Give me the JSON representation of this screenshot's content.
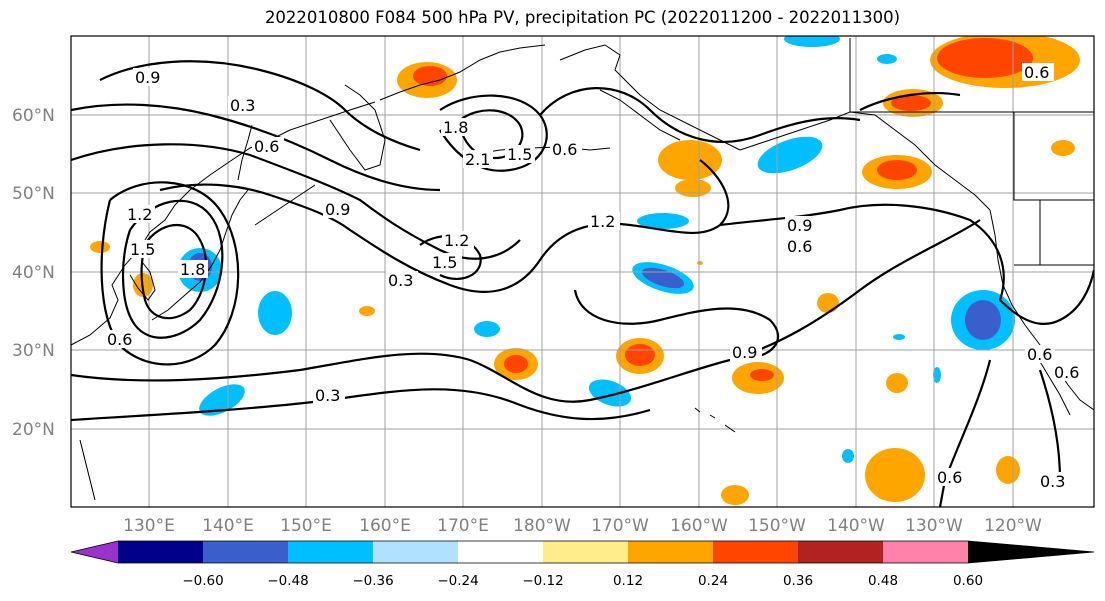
{
  "title": "2022010800 F084 500 hPa PV, precipitation PC (2022011200 - 2022011300)",
  "lat_labels": [
    "60°N",
    "50°N",
    "40°N",
    "30°N",
    "20°N"
  ],
  "lon_labels": [
    "130°E",
    "140°E",
    "150°E",
    "160°E",
    "170°E",
    "180°W",
    "170°W",
    "160°W",
    "150°W",
    "140°W",
    "130°W",
    "120°W"
  ],
  "contour_labels": [
    "0.9",
    "0.3",
    "0.6",
    "1.8",
    "2.1",
    "1.5",
    "0.6",
    "1.2",
    "1.5",
    "1.8",
    "0.9",
    "1.2",
    "1.5",
    "0.3",
    "1.2",
    "0.9",
    "0.6",
    "0.9",
    "0.6",
    "0.3",
    "0.6",
    "0.6",
    "0.3",
    "0.6",
    "0.6"
  ],
  "colorbar": {
    "colors": [
      "#9932cc",
      "#00008b",
      "#3a5fcd",
      "#00bfff",
      "#b0e2ff",
      "#ffffff",
      "#ffec8b",
      "#ffa500",
      "#ff4500",
      "#b22222",
      "#ff82ab"
    ],
    "tick_labels": [
      "−0.60",
      "−0.48",
      "−0.36",
      "−0.24",
      "−0.12",
      "0.12",
      "0.24",
      "0.36",
      "0.48",
      "0.60"
    ]
  }
}
